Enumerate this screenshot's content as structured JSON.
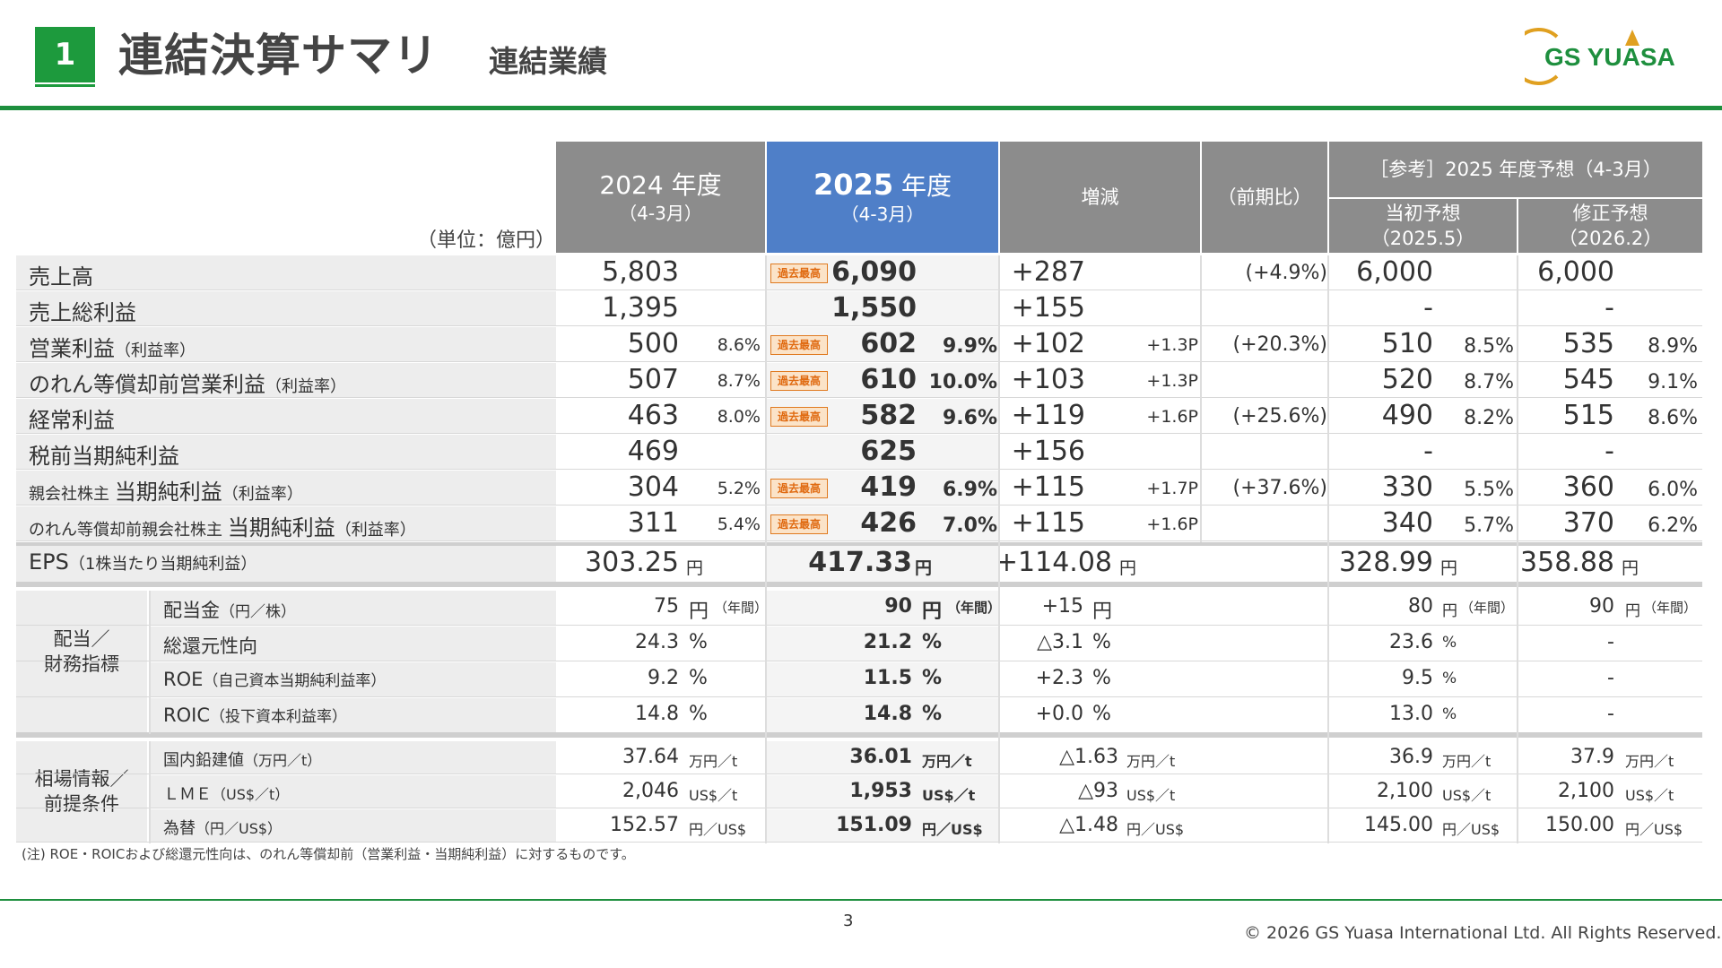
{
  "header": {
    "section_number": "1",
    "title": "連結決算サマリ",
    "subtitle": "連結業績",
    "logo_text": "GS YUASA"
  },
  "table": {
    "unit_label": "（単位：億円）",
    "col_2024": {
      "year": "2024",
      "suffix": "年度",
      "period": "（4-3月）"
    },
    "col_2025": {
      "year": "2025",
      "suffix": "年度",
      "period": "（4-3月）"
    },
    "col_change": "増減",
    "col_yoy": "（前期比）",
    "col_ref": "［参考］2025 年度予想（4-3月）",
    "col_initial": {
      "label": "当初予想",
      "date": "（2025.5）"
    },
    "col_revised": {
      "label": "修正予想",
      "date": "（2026.2）"
    },
    "record_badge": "過去最高",
    "rows": [
      {
        "label": "売上高",
        "label_note": "",
        "v2024": "5,803",
        "r2024": "",
        "badge": true,
        "v2025": "6,090",
        "r2025": "",
        "chg": "+287",
        "chg_pt": "",
        "yoy": "(+4.9%)",
        "init": "6,000",
        "init_r": "",
        "rev": "6,000",
        "rev_r": ""
      },
      {
        "label": "売上総利益",
        "label_note": "",
        "v2024": "1,395",
        "r2024": "",
        "badge": false,
        "v2025": "1,550",
        "r2025": "",
        "chg": "+155",
        "chg_pt": "",
        "yoy": "",
        "init": "-",
        "init_r": "",
        "rev": "-",
        "rev_r": ""
      },
      {
        "label": "営業利益",
        "label_note": "（利益率）",
        "v2024": "500",
        "r2024": "8.6%",
        "badge": true,
        "v2025": "602",
        "r2025": "9.9%",
        "chg": "+102",
        "chg_pt": "+1.3P",
        "yoy": "(+20.3%)",
        "init": "510",
        "init_r": "8.5%",
        "rev": "535",
        "rev_r": "8.9%"
      },
      {
        "label": "のれん等償却前営業利益",
        "label_note": "（利益率）",
        "v2024": "507",
        "r2024": "8.7%",
        "badge": true,
        "v2025": "610",
        "r2025": "10.0%",
        "chg": "+103",
        "chg_pt": "+1.3P",
        "yoy": "",
        "init": "520",
        "init_r": "8.7%",
        "rev": "545",
        "rev_r": "9.1%"
      },
      {
        "label": "経常利益",
        "label_note": "",
        "v2024": "463",
        "r2024": "8.0%",
        "badge": true,
        "v2025": "582",
        "r2025": "9.6%",
        "chg": "+119",
        "chg_pt": "+1.6P",
        "yoy": "(+25.6%)",
        "init": "490",
        "init_r": "8.2%",
        "rev": "515",
        "rev_r": "8.6%"
      },
      {
        "label": "税前当期純利益",
        "label_note": "",
        "v2024": "469",
        "r2024": "",
        "badge": false,
        "v2025": "625",
        "r2025": "",
        "chg": "+156",
        "chg_pt": "",
        "yoy": "",
        "init": "-",
        "init_r": "",
        "rev": "-",
        "rev_r": ""
      },
      {
        "label_pre": "親会社株主",
        "label": "当期純利益",
        "label_note": "（利益率）",
        "v2024": "304",
        "r2024": "5.2%",
        "badge": true,
        "v2025": "419",
        "r2025": "6.9%",
        "chg": "+115",
        "chg_pt": "+1.7P",
        "yoy": "(+37.6%)",
        "init": "330",
        "init_r": "5.5%",
        "rev": "360",
        "rev_r": "6.0%"
      },
      {
        "label_pre": "のれん等償却前親会社株主",
        "label": "当期純利益",
        "label_note": "（利益率）",
        "v2024": "311",
        "r2024": "5.4%",
        "badge": true,
        "v2025": "426",
        "r2025": "7.0%",
        "chg": "+115",
        "chg_pt": "+1.6P",
        "yoy": "",
        "init": "340",
        "init_r": "5.7%",
        "rev": "370",
        "rev_r": "6.2%"
      }
    ],
    "eps": {
      "label": "EPS",
      "label_note": "（1株当たり当期純利益）",
      "v2024": "303.25",
      "v2025": "417.33",
      "chg": "+114.08",
      "init": "328.99",
      "rev": "358.88",
      "unit": "円"
    },
    "group_dividend": "配当／\n財務指標",
    "dividend_rows": [
      {
        "label": "配当金",
        "label_note": "（円／株）",
        "v2024": "75",
        "u2024": "円",
        "n2024": "（年間）",
        "v2025": "90",
        "u2025": "円",
        "n2025": "（年間）",
        "chg": "+15",
        "uchg": "円",
        "init": "80",
        "uinit": "円",
        "ninit": "（年間）",
        "rev": "90",
        "urev": "円",
        "nrev": "（年間）"
      },
      {
        "label": "総還元性向",
        "label_note": "",
        "v2024": "24.3",
        "u2024": "%",
        "n2024": "",
        "v2025": "21.2",
        "u2025": "%",
        "n2025": "",
        "chg": "△3.1",
        "uchg": "%",
        "init": "23.6",
        "uinit": "%",
        "ninit": "",
        "rev": "-",
        "urev": "",
        "nrev": ""
      },
      {
        "label": "ROE",
        "label_note": "（自己資本当期純利益率）",
        "v2024": "9.2",
        "u2024": "%",
        "n2024": "",
        "v2025": "11.5",
        "u2025": "%",
        "n2025": "",
        "chg": "+2.3",
        "uchg": "%",
        "init": "9.5",
        "uinit": "%",
        "ninit": "",
        "rev": "-",
        "urev": "",
        "nrev": ""
      },
      {
        "label": "ROIC",
        "label_note": "（投下資本利益率）",
        "v2024": "14.8",
        "u2024": "%",
        "n2024": "",
        "v2025": "14.8",
        "u2025": "%",
        "n2025": "",
        "chg": "+0.0",
        "uchg": "%",
        "init": "13.0",
        "uinit": "%",
        "ninit": "",
        "rev": "-",
        "urev": "",
        "nrev": ""
      }
    ],
    "group_market": "相場情報／\n前提条件",
    "market_rows": [
      {
        "label": "国内鉛建値",
        "label_note": "（万円／t）",
        "v2024": "37.64",
        "u": "万円／t",
        "v2025": "36.01",
        "chg": "△1.63",
        "init": "36.9",
        "rev": "37.9"
      },
      {
        "label": "ＬＭＥ",
        "label_note": "（US$／t）",
        "v2024": "2,046",
        "u": "US$／t",
        "v2025": "1,953",
        "chg": "△93",
        "init": "2,100",
        "rev": "2,100"
      },
      {
        "label": "為替",
        "label_note": "（円／US$）",
        "v2024": "152.57",
        "u": "円／US$",
        "v2025": "151.09",
        "chg": "△1.48",
        "init": "145.00",
        "rev": "150.00"
      }
    ]
  },
  "footer": {
    "note": "(注) ROE・ROICおよび総還元性向は、のれん等償却前（営業利益・当期純利益）に対するものです。",
    "page_number": "3",
    "copyright": "© 2026 GS Yuasa International Ltd. All Rights Reserved."
  },
  "colors": {
    "green": "#1d9a3d",
    "header_gray": "#8c8c8c",
    "header_blue": "#4f7fc8",
    "row_gray": "#ededed",
    "badge_orange": "#e07a20"
  }
}
